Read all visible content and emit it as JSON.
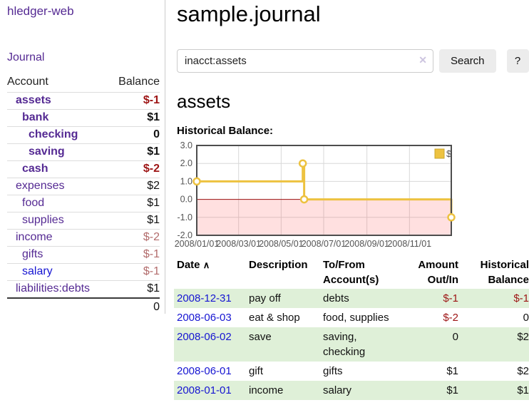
{
  "colors": {
    "link_purple": "#552a93",
    "link_blue": "#1615d2",
    "negative": "#9d1414",
    "negative_muted": "#b26b6b",
    "row_green": "#dff0d8",
    "chart_line": "#edc240",
    "chart_marker_fill": "#ffffff",
    "chart_negative_fill": "rgba(255,60,60,0.16)",
    "chart_zero_line": "#991111",
    "chart_border": "#4d4d4d",
    "chart_grid": "#d8d8d8",
    "axis_text": "#545454",
    "button_bg": "#ececec"
  },
  "app": {
    "brand": "hledger-web"
  },
  "sidebar": {
    "journal_label": "Journal",
    "accounts": {
      "header_account": "Account",
      "header_balance": "Balance",
      "rows": [
        {
          "name": "assets",
          "depth": 1,
          "balance": "$-1",
          "bold": true,
          "negative": true,
          "muted": false,
          "visited": true
        },
        {
          "name": "bank",
          "depth": 2,
          "balance": "$1",
          "bold": true,
          "negative": false,
          "muted": false,
          "visited": true
        },
        {
          "name": "checking",
          "depth": 3,
          "balance": "0",
          "bold": true,
          "negative": false,
          "muted": false,
          "visited": true
        },
        {
          "name": "saving",
          "depth": 3,
          "balance": "$1",
          "bold": true,
          "negative": false,
          "muted": false,
          "visited": true
        },
        {
          "name": "cash",
          "depth": 2,
          "balance": "$-2",
          "bold": true,
          "negative": true,
          "muted": false,
          "visited": true
        },
        {
          "name": "expenses",
          "depth": 1,
          "balance": "$2",
          "bold": false,
          "negative": false,
          "muted": false,
          "visited": true
        },
        {
          "name": "food",
          "depth": 2,
          "balance": "$1",
          "bold": false,
          "negative": false,
          "muted": false,
          "visited": true
        },
        {
          "name": "supplies",
          "depth": 2,
          "balance": "$1",
          "bold": false,
          "negative": false,
          "muted": false,
          "visited": true
        },
        {
          "name": "income",
          "depth": 1,
          "balance": "$-2",
          "bold": false,
          "negative": true,
          "muted": true,
          "visited": true
        },
        {
          "name": "gifts",
          "depth": 2,
          "balance": "$-1",
          "bold": false,
          "negative": true,
          "muted": true,
          "visited": true
        },
        {
          "name": "salary",
          "depth": 2,
          "balance": "$-1",
          "bold": false,
          "negative": true,
          "muted": true,
          "visited": false
        },
        {
          "name": "liabilities:debts",
          "depth": 1,
          "balance": "$1",
          "bold": false,
          "negative": false,
          "muted": false,
          "visited": true
        }
      ],
      "total": "0"
    }
  },
  "main": {
    "title": "sample.journal",
    "search": {
      "value": "inacct:assets",
      "clear_icon": "✕",
      "button_label": "Search",
      "help_label": "?"
    },
    "account_heading": "assets",
    "chart_label": "Historical Balance:"
  },
  "chart_data": {
    "type": "line",
    "title": "Historical Balance:",
    "step": true,
    "x_type": "date",
    "xlim": [
      "2008-01-01",
      "2008-12-31"
    ],
    "ylim": [
      -2,
      3
    ],
    "yticks": [
      "3.0",
      "2.0",
      "1.0",
      "0.0",
      "-1.0",
      "-2.0"
    ],
    "xticks": [
      "2008/01/01",
      "2008/03/01",
      "2008/05/01",
      "2008/07/01",
      "2008/09/01",
      "2008/11/01"
    ],
    "series": [
      {
        "name": "$",
        "color": "#edc240",
        "points": [
          [
            "2008-01-01",
            1
          ],
          [
            "2008-06-01",
            2
          ],
          [
            "2008-06-03",
            0
          ],
          [
            "2008-12-31",
            -1
          ]
        ]
      }
    ],
    "legend": {
      "position": "top-right",
      "label": "$"
    },
    "grid": true,
    "negative_region_shaded": true
  },
  "register": {
    "headers": [
      "Date",
      "Description",
      "To/From Account(s)",
      "Amount Out/In",
      "Historical Balance"
    ],
    "sort_icon": "∧",
    "rows": [
      {
        "date": "2008-12-31",
        "description": "pay off",
        "accounts": "debts",
        "amount": "$-1",
        "balance": "$-1",
        "amount_negative": true,
        "balance_negative": true
      },
      {
        "date": "2008-06-03",
        "description": "eat & shop",
        "accounts": "food, supplies",
        "amount": "$-2",
        "balance": "0",
        "amount_negative": true,
        "balance_negative": false
      },
      {
        "date": "2008-06-02",
        "description": "save",
        "accounts": "saving, checking",
        "amount": "0",
        "balance": "$2",
        "amount_negative": false,
        "balance_negative": false
      },
      {
        "date": "2008-06-01",
        "description": "gift",
        "accounts": "gifts",
        "amount": "$1",
        "balance": "$2",
        "amount_negative": false,
        "balance_negative": false
      },
      {
        "date": "2008-01-01",
        "description": "income",
        "accounts": "salary",
        "amount": "$1",
        "balance": "$1",
        "amount_negative": false,
        "balance_negative": false
      }
    ]
  }
}
